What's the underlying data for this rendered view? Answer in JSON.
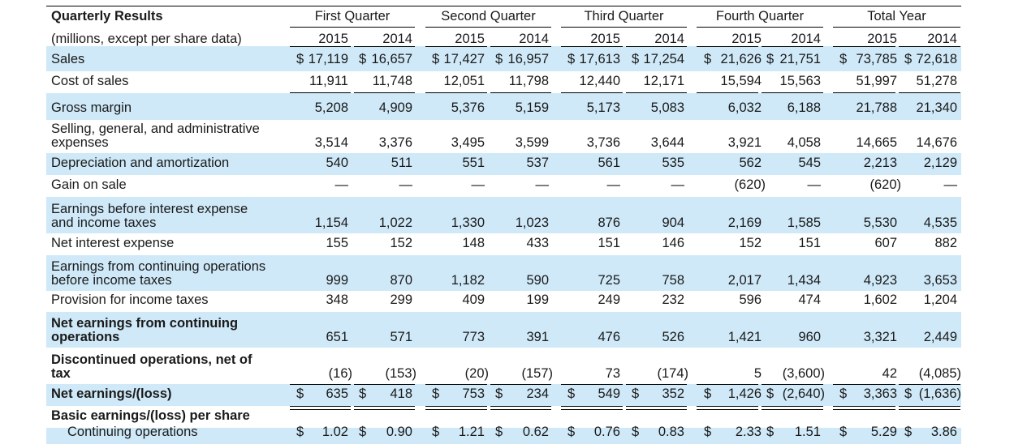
{
  "header": {
    "title": "Quarterly Results",
    "subtitle": "(millions, except per share data)",
    "groups": [
      "First Quarter",
      "Second Quarter",
      "Third Quarter",
      "Fourth Quarter",
      "Total Year"
    ],
    "years": [
      "2015",
      "2014",
      "2015",
      "2014",
      "2015",
      "2014",
      "2015",
      "2014",
      "2015",
      "2014"
    ]
  },
  "rows": [
    {
      "label": "Sales",
      "values": [
        "17,119",
        "16,657",
        "17,427",
        "16,957",
        "17,613",
        "17,254",
        "21,626",
        "21,751",
        "73,785",
        "72,618"
      ],
      "currency": "$"
    },
    {
      "label": "Cost of sales",
      "values": [
        "11,911",
        "11,748",
        "12,051",
        "11,798",
        "12,440",
        "12,171",
        "15,594",
        "15,563",
        "51,997",
        "51,278"
      ]
    },
    {
      "label": "Gross margin",
      "values": [
        "5,208",
        "4,909",
        "5,376",
        "5,159",
        "5,173",
        "5,083",
        "6,032",
        "6,188",
        "21,788",
        "21,340"
      ]
    },
    {
      "label": "Selling, general, and administrative expenses",
      "values": [
        "3,514",
        "3,376",
        "3,495",
        "3,599",
        "3,736",
        "3,644",
        "3,921",
        "4,058",
        "14,665",
        "14,676"
      ]
    },
    {
      "label": "Depreciation and amortization",
      "values": [
        "540",
        "511",
        "551",
        "537",
        "561",
        "535",
        "562",
        "545",
        "2,213",
        "2,129"
      ]
    },
    {
      "label": "Gain on sale",
      "values": [
        "—",
        "—",
        "—",
        "—",
        "—",
        "—",
        "(620)",
        "—",
        "(620)",
        "—"
      ]
    },
    {
      "label": "Earnings before interest expense and income taxes",
      "values": [
        "1,154",
        "1,022",
        "1,330",
        "1,023",
        "876",
        "904",
        "2,169",
        "1,585",
        "5,530",
        "4,535"
      ]
    },
    {
      "label": "Net interest expense",
      "values": [
        "155",
        "152",
        "148",
        "433",
        "151",
        "146",
        "152",
        "151",
        "607",
        "882"
      ]
    },
    {
      "label": "Earnings from continuing operations before income taxes",
      "values": [
        "999",
        "870",
        "1,182",
        "590",
        "725",
        "758",
        "2,017",
        "1,434",
        "4,923",
        "3,653"
      ]
    },
    {
      "label": "Provision for income taxes",
      "values": [
        "348",
        "299",
        "409",
        "199",
        "249",
        "232",
        "596",
        "474",
        "1,602",
        "1,204"
      ]
    },
    {
      "label": "Net earnings from continuing operations",
      "values": [
        "651",
        "571",
        "773",
        "391",
        "476",
        "526",
        "1,421",
        "960",
        "3,321",
        "2,449"
      ]
    },
    {
      "label": "Discontinued operations, net of tax",
      "values": [
        "(16)",
        "(153)",
        "(20)",
        "(157)",
        "73",
        "(174)",
        "5",
        "(3,600)",
        "42",
        "(4,085)"
      ]
    },
    {
      "label": "Net earnings/(loss)",
      "values": [
        "635",
        "418",
        "753",
        "234",
        "549",
        "352",
        "1,426",
        "(2,640)",
        "3,363",
        "(1,636)"
      ],
      "currency": "$"
    },
    {
      "label": "Basic earnings/(loss) per share",
      "values": [
        "",
        "",
        "",
        "",
        "",
        "",
        "",
        "",
        "",
        ""
      ]
    },
    {
      "label": "Continuing operations",
      "values": [
        "1.02",
        "0.90",
        "1.21",
        "0.62",
        "0.76",
        "0.83",
        "2.33",
        "1.51",
        "5.29",
        "3.86"
      ],
      "currency": "$"
    }
  ],
  "colors": {
    "shade": "#cfe9f8",
    "rule": "#000000"
  }
}
